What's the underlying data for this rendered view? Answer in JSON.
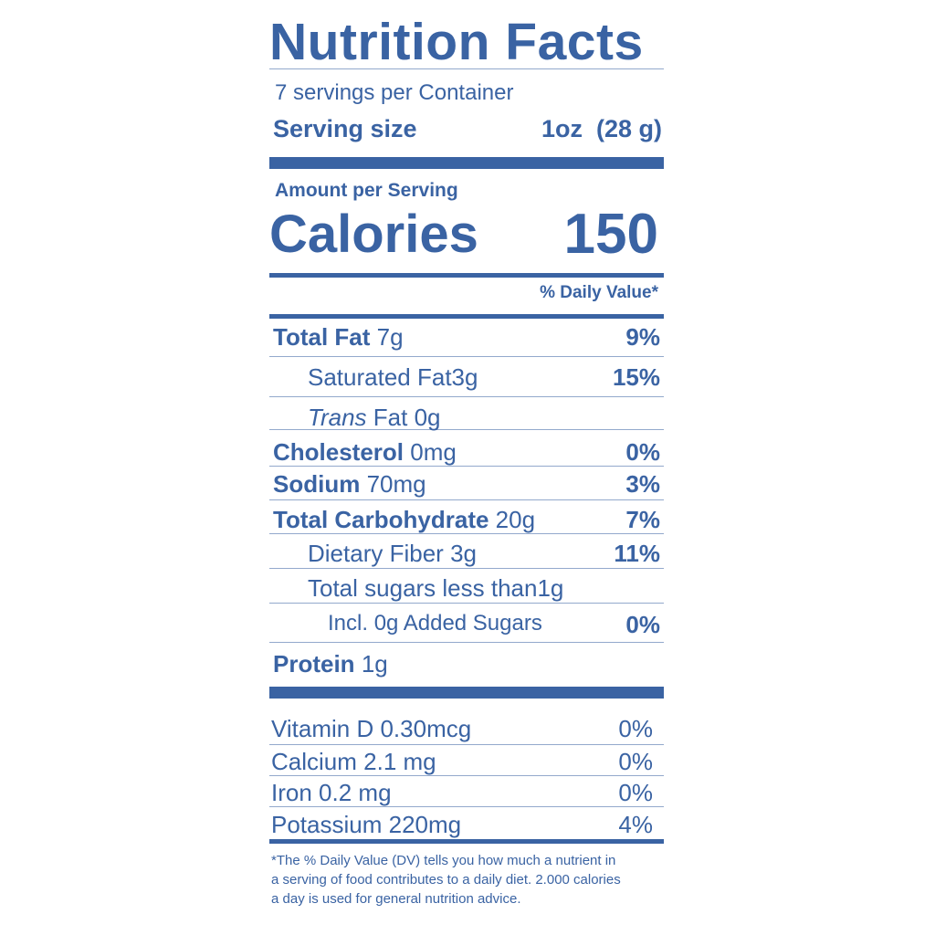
{
  "colors": {
    "label": "#3a63a3",
    "background": "#ffffff"
  },
  "title": "Nutrition Facts",
  "servings_per_container": "7 servings per Container",
  "serving_size": {
    "label": "Serving size",
    "value": "1oz  (28 g)"
  },
  "amount_per_serving": "Amount per Serving",
  "calories": {
    "label": "Calories",
    "value": "150"
  },
  "daily_value_header": "% Daily Value*",
  "nutrients": [
    {
      "name": "Total Fat",
      "amount": "7g",
      "dv": "9%"
    },
    {
      "name": "Saturated Fat",
      "amount": "3g",
      "dv": "15%"
    },
    {
      "name_italic": "Trans",
      "name": "Fat",
      "amount": "0g",
      "dv": ""
    },
    {
      "name": "Cholesterol",
      "amount": "0mg",
      "dv": "0%"
    },
    {
      "name": "Sodium",
      "amount": "70mg",
      "dv": "3%"
    },
    {
      "name": "Total Carbohydrate",
      "amount": "20g",
      "dv": "7%"
    },
    {
      "name": "Dietary Fiber",
      "amount": "3g",
      "dv": "11%"
    },
    {
      "name": "Total sugars less than",
      "amount": "1g",
      "dv": ""
    },
    {
      "name": "Incl.",
      "amount": "0g",
      "suffix": "Added Sugars",
      "dv": "0%"
    },
    {
      "name": "Protein",
      "amount": "1g",
      "dv": ""
    }
  ],
  "micronutrients": [
    {
      "name": "Vitamin D",
      "amount": "0.30mcg",
      "dv": "0%"
    },
    {
      "name": "Calcium",
      "amount": "2.1 mg",
      "dv": "0%"
    },
    {
      "name": "Iron",
      "amount": "0.2 mg",
      "dv": "0%"
    },
    {
      "name": "Potassium",
      "amount": "220mg",
      "dv": "4%"
    }
  ],
  "footnote": [
    "*The % Daily Value (DV) tells you how much a nutrient in",
    "a serving of food contributes to a daily diet. 2.000 calories",
    "a day is used for general nutrition advice."
  ]
}
